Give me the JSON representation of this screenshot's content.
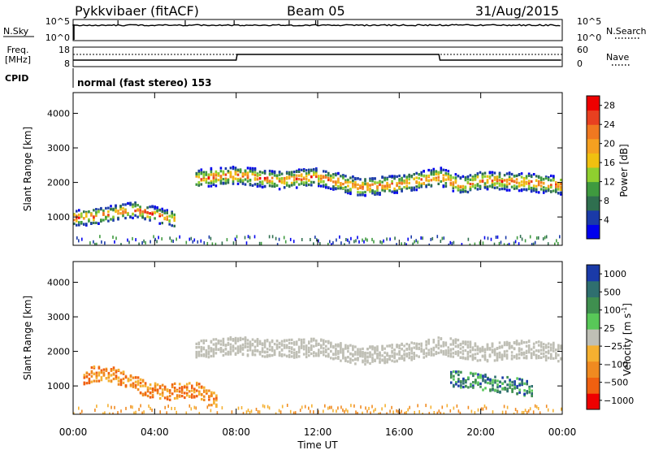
{
  "header": {
    "station": "Pykkvibaer (fitACF)",
    "beam": "Beam 05",
    "date": "31/Aug/2015"
  },
  "sky_panel": {
    "left_label": "N.Sky",
    "left_ticks": [
      "10^5",
      "10^0"
    ],
    "right_label": "N.Search",
    "right_ticks": [
      "10^5",
      "10^0"
    ]
  },
  "freq_panel": {
    "left_label_1": "Freq.",
    "left_label_2": "[MHz]",
    "left_ticks": [
      "18",
      "8"
    ],
    "right_label": "Nave",
    "right_ticks": [
      "60",
      "0"
    ]
  },
  "cpid_panel": {
    "label": "CPID",
    "text": "normal (fast stereo) 153"
  },
  "colors": {
    "power_scale": [
      "#0000ee",
      "#1a3aa8",
      "#2f6f4f",
      "#3f9a3f",
      "#8fcf2f",
      "#f0c010",
      "#f5a020",
      "#f07820",
      "#e84020",
      "#ee0000"
    ],
    "velocity_scale": [
      "#1a3aa8",
      "#2f6f6f",
      "#3f8f4f",
      "#58c858",
      "#bfbfb5",
      "#f5b030",
      "#f08a20",
      "#f06010",
      "#ee0000"
    ]
  },
  "chart_data": [
    {
      "type": "heatmap",
      "title": "Power",
      "ylabel": "Slant Range [km]",
      "xlim": [
        "00:00",
        "24:00"
      ],
      "ylim": [
        180,
        4600
      ],
      "yticks": [
        "1000",
        "2000",
        "3000",
        "4000"
      ],
      "colorbar": {
        "label": "Power [dB]",
        "ticks": [
          "4",
          "8",
          "12",
          "16",
          "20",
          "24",
          "28"
        ],
        "range": [
          0,
          30
        ]
      },
      "layers": [
        {
          "name": "backscatter band",
          "x": [
            6.0,
            8.0,
            10.0,
            12.0,
            14.0,
            16.0,
            18.0,
            19.0,
            20.0,
            22.0,
            24.0
          ],
          "y": [
            2100,
            2200,
            2050,
            2150,
            1850,
            1950,
            2150,
            1900,
            2050,
            2000,
            1900
          ]
        },
        {
          "name": "near-range scatter",
          "x": [
            0.0,
            1.0,
            2.0,
            3.0,
            4.0,
            5.0
          ],
          "y": [
            950,
            1000,
            1100,
            1200,
            1050,
            900
          ]
        }
      ]
    },
    {
      "type": "heatmap",
      "title": "Velocity",
      "ylabel": "Slant Range [km]",
      "xlabel": "Time UT",
      "xlim": [
        "00:00",
        "24:00"
      ],
      "ylim": [
        180,
        4600
      ],
      "xticks": [
        "00:00",
        "04:00",
        "08:00",
        "12:00",
        "16:00",
        "20:00",
        "00:00"
      ],
      "yticks": [
        "1000",
        "2000",
        "3000",
        "4000"
      ],
      "colorbar": {
        "label": "Velocity [m s",
        "label_sup": "-1",
        "label_end": "]",
        "ticks": [
          "1000",
          "500",
          "100",
          "25",
          "−25",
          "−100",
          "−500",
          "−1000"
        ]
      },
      "layers": [
        {
          "name": "ground/slow scatter",
          "x": [
            6.0,
            8.0,
            10.0,
            12.0,
            14.0,
            16.0,
            18.0,
            20.0,
            22.0,
            24.0
          ],
          "y": [
            2050,
            2150,
            2050,
            2100,
            1850,
            1950,
            2150,
            1950,
            2050,
            1950
          ]
        },
        {
          "name": "negative velocity patches",
          "x": [
            0.5,
            1.5,
            2.5,
            3.5,
            4.5,
            6.0,
            7.0
          ],
          "y": [
            1250,
            1400,
            1200,
            900,
            800,
            900,
            500
          ]
        },
        {
          "name": "positive velocity patches",
          "x": [
            18.5,
            19.5,
            20.5,
            21.5,
            22.5
          ],
          "y": [
            1200,
            1150,
            1050,
            1000,
            900
          ]
        }
      ]
    }
  ]
}
